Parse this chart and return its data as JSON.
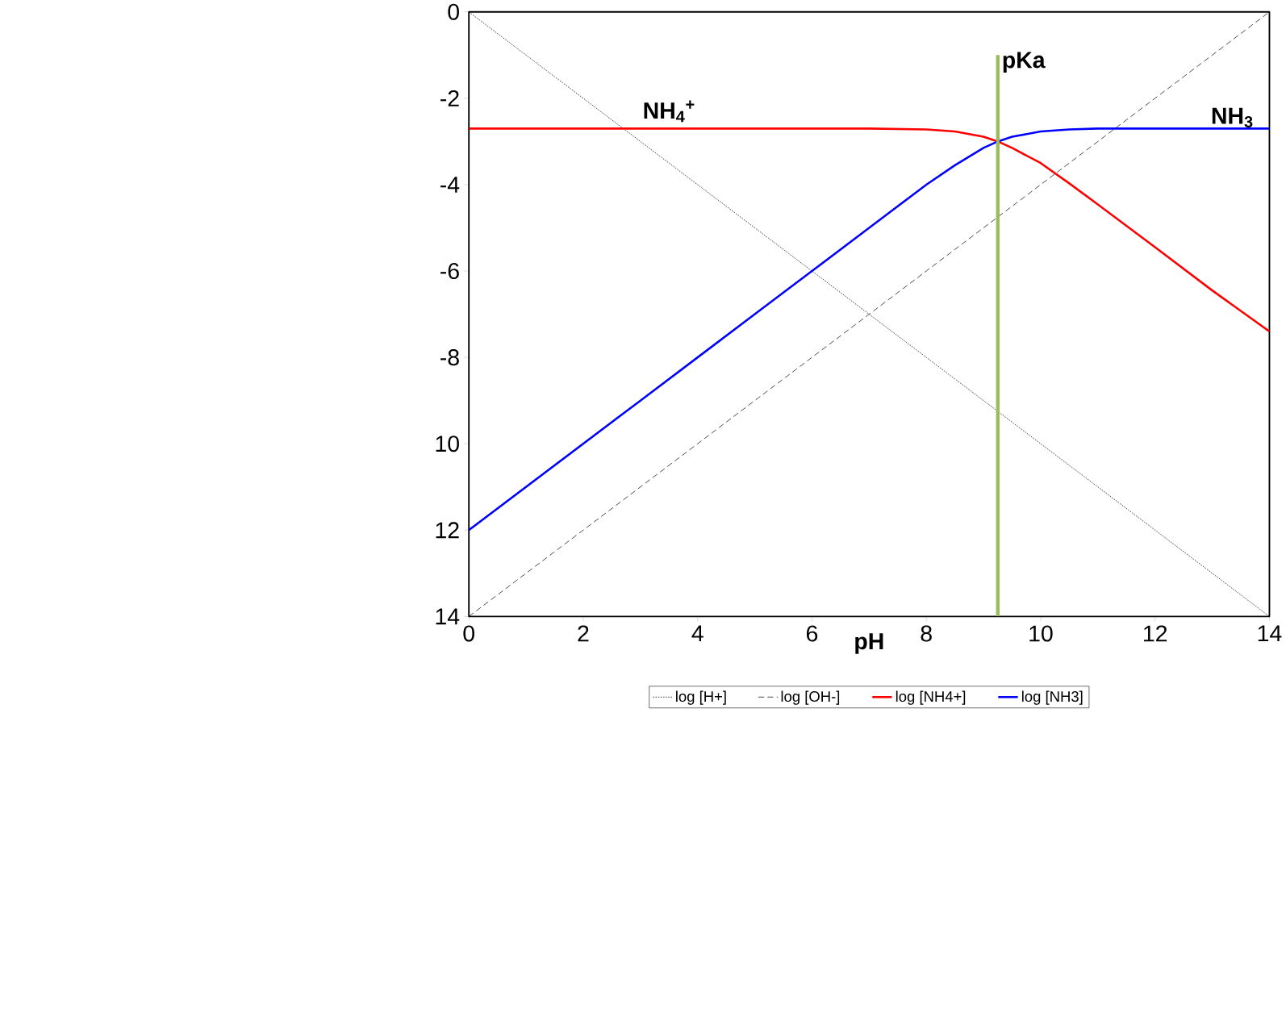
{
  "chart_data": {
    "type": "line",
    "xlabel": "pH",
    "x": [
      0,
      1,
      2,
      3,
      4,
      5,
      6,
      7,
      8,
      8.5,
      9,
      9.25,
      9.5,
      10,
      10.5,
      11,
      12,
      13,
      14
    ],
    "series": [
      {
        "name": "log [H+]",
        "color": "#000000",
        "line_style": "dotted",
        "values": [
          0,
          -1,
          -2,
          -3,
          -4,
          -5,
          -6,
          -7,
          -8,
          -8.5,
          -9,
          -9.25,
          -9.5,
          -10,
          -10.5,
          -11,
          -12,
          -13,
          -14
        ]
      },
      {
        "name": "log [OH-]",
        "color": "#000000",
        "line_style": "dashed",
        "values": [
          -14,
          -13,
          -12,
          -11,
          -10,
          -9,
          -8,
          -7,
          -6,
          -5.5,
          -5,
          -4.75,
          -4.5,
          -4,
          -3.5,
          -3,
          -2,
          -1,
          0
        ]
      },
      {
        "name": "log [NH4+]",
        "color": "#ff0000",
        "line_style": "solid",
        "values": [
          -2.7,
          -2.7,
          -2.7,
          -2.7,
          -2.7,
          -2.7,
          -2.7,
          -2.7,
          -2.72,
          -2.77,
          -2.89,
          -3.0,
          -3.15,
          -3.5,
          -3.97,
          -4.46,
          -5.45,
          -6.45,
          -7.4
        ]
      },
      {
        "name": "log [NH3]",
        "color": "#0000ff",
        "line_style": "solid",
        "values": [
          -12,
          -11,
          -10,
          -9,
          -8,
          -7,
          -6,
          -5,
          -4,
          -3.55,
          -3.15,
          -3.0,
          -2.89,
          -2.77,
          -2.72,
          -2.7,
          -2.7,
          -2.7,
          -2.7
        ]
      }
    ],
    "xlim": [
      0,
      14
    ],
    "xticks": [
      0,
      2,
      4,
      6,
      8,
      10,
      12,
      14
    ],
    "ylim": [
      -14,
      0
    ],
    "yticks": [
      0,
      -2,
      -4,
      -6,
      -8,
      {
        "value": -10,
        "label": "10"
      },
      {
        "value": -12,
        "label": "12"
      },
      {
        "value": -14,
        "label": "14"
      }
    ],
    "ref_lines": [
      {
        "axis": "x",
        "value": 9.25,
        "label": "pKa",
        "color": "#9bbb59"
      }
    ],
    "annotations": [
      "NH$_{4}$$^{+}$",
      "NH$_{3}$"
    ],
    "grid": false,
    "legend": "bottom",
    "marker": "none"
  }
}
